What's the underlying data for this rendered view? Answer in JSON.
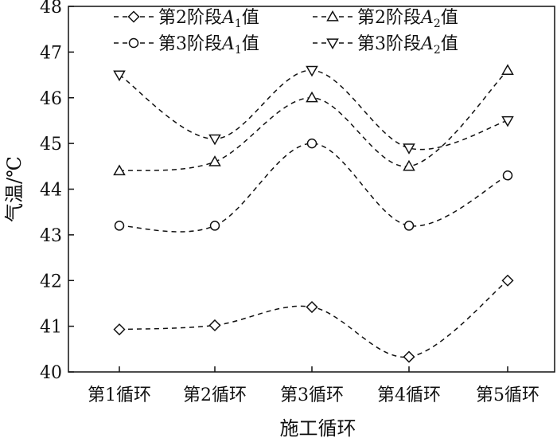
{
  "chart_data": {
    "type": "line",
    "xlabel": "施工循环",
    "ylabel": "气温/℃",
    "categories": [
      "第1循环",
      "第2循环",
      "第3循环",
      "第4循环",
      "第5循环"
    ],
    "ylim": [
      40,
      48
    ],
    "yticks": [
      "40",
      "41",
      "42",
      "43",
      "44",
      "45",
      "46",
      "47",
      "48"
    ],
    "series": [
      {
        "name": "第2阶段A1值",
        "name_main": "第2阶段",
        "name_var": "A",
        "name_sub": "1",
        "name_tail": "值",
        "marker": "diamond",
        "values": [
          40.93,
          41.02,
          41.42,
          40.33,
          42.0
        ]
      },
      {
        "name": "第2阶段A2值",
        "name_main": "第2阶段",
        "name_var": "A",
        "name_sub": "2",
        "name_tail": "值",
        "marker": "triangle-up",
        "values": [
          44.4,
          44.6,
          46.0,
          44.5,
          46.6
        ]
      },
      {
        "name": "第3阶段A1值",
        "name_main": "第3阶段",
        "name_var": "A",
        "name_sub": "1",
        "name_tail": "值",
        "marker": "circle",
        "values": [
          43.2,
          43.2,
          45.0,
          43.2,
          44.3
        ]
      },
      {
        "name": "第3阶段A2值",
        "name_main": "第3阶段",
        "name_var": "A",
        "name_sub": "2",
        "name_tail": "值",
        "marker": "triangle-down",
        "values": [
          46.5,
          45.1,
          46.6,
          44.9,
          45.5
        ]
      }
    ],
    "legend_position": "top",
    "grid": false
  }
}
